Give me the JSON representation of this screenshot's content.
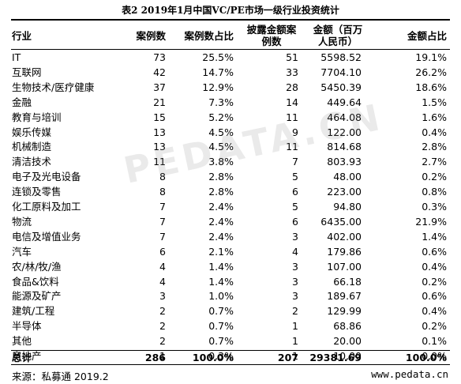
{
  "title": "表2 2019年1月中国VC/PE市场一级行业投资统计",
  "headers": {
    "industry": "行业",
    "cases": "案例数",
    "case_share": "案例数占比",
    "disclosed_line1": "披露金额案",
    "disclosed_line2": "例数",
    "amount_line1": "金额（百万",
    "amount_line2": "人民币）",
    "amount_share": "金额占比"
  },
  "rows": [
    {
      "industry": "IT",
      "cases": "73",
      "case_share": "25.5%",
      "disclosed": "51",
      "amount": "5598.52",
      "amount_share": "19.1%"
    },
    {
      "industry": "互联网",
      "cases": "42",
      "case_share": "14.7%",
      "disclosed": "33",
      "amount": "7704.10",
      "amount_share": "26.2%"
    },
    {
      "industry": "生物技术/医疗健康",
      "cases": "37",
      "case_share": "12.9%",
      "disclosed": "28",
      "amount": "5450.39",
      "amount_share": "18.6%"
    },
    {
      "industry": "金融",
      "cases": "21",
      "case_share": "7.3%",
      "disclosed": "14",
      "amount": "449.64",
      "amount_share": "1.5%"
    },
    {
      "industry": "教育与培训",
      "cases": "15",
      "case_share": "5.2%",
      "disclosed": "11",
      "amount": "464.08",
      "amount_share": "1.6%"
    },
    {
      "industry": "娱乐传媒",
      "cases": "13",
      "case_share": "4.5%",
      "disclosed": "9",
      "amount": "122.00",
      "amount_share": "0.4%"
    },
    {
      "industry": "机械制造",
      "cases": "13",
      "case_share": "4.5%",
      "disclosed": "11",
      "amount": "814.68",
      "amount_share": "2.8%"
    },
    {
      "industry": "清洁技术",
      "cases": "11",
      "case_share": "3.8%",
      "disclosed": "7",
      "amount": "803.93",
      "amount_share": "2.7%"
    },
    {
      "industry": "电子及光电设备",
      "cases": "8",
      "case_share": "2.8%",
      "disclosed": "5",
      "amount": "48.00",
      "amount_share": "0.2%"
    },
    {
      "industry": "连锁及零售",
      "cases": "8",
      "case_share": "2.8%",
      "disclosed": "6",
      "amount": "223.00",
      "amount_share": "0.8%"
    },
    {
      "industry": "化工原料及加工",
      "cases": "7",
      "case_share": "2.4%",
      "disclosed": "5",
      "amount": "94.80",
      "amount_share": "0.3%"
    },
    {
      "industry": "物流",
      "cases": "7",
      "case_share": "2.4%",
      "disclosed": "6",
      "amount": "6435.00",
      "amount_share": "21.9%"
    },
    {
      "industry": "电信及增值业务",
      "cases": "7",
      "case_share": "2.4%",
      "disclosed": "3",
      "amount": "402.00",
      "amount_share": "1.4%"
    },
    {
      "industry": "汽车",
      "cases": "6",
      "case_share": "2.1%",
      "disclosed": "4",
      "amount": "179.86",
      "amount_share": "0.6%"
    },
    {
      "industry": "农/林/牧/渔",
      "cases": "4",
      "case_share": "1.4%",
      "disclosed": "3",
      "amount": "107.00",
      "amount_share": "0.4%"
    },
    {
      "industry": "食品&饮料",
      "cases": "4",
      "case_share": "1.4%",
      "disclosed": "3",
      "amount": "66.18",
      "amount_share": "0.2%"
    },
    {
      "industry": "能源及矿产",
      "cases": "3",
      "case_share": "1.0%",
      "disclosed": "3",
      "amount": "189.67",
      "amount_share": "0.6%"
    },
    {
      "industry": "建筑/工程",
      "cases": "2",
      "case_share": "0.7%",
      "disclosed": "2",
      "amount": "129.99",
      "amount_share": "0.4%"
    },
    {
      "industry": "半导体",
      "cases": "2",
      "case_share": "0.7%",
      "disclosed": "1",
      "amount": "68.86",
      "amount_share": "0.2%"
    },
    {
      "industry": "其他",
      "cases": "2",
      "case_share": "0.7%",
      "disclosed": "1",
      "amount": "20.00",
      "amount_share": "0.1%"
    },
    {
      "industry": "房地产",
      "cases": "1",
      "case_share": "0.3%",
      "disclosed": "1",
      "amount": "10.00",
      "amount_share": "0.0%"
    }
  ],
  "total": {
    "industry": "总计",
    "cases": "286",
    "case_share": "100.0%",
    "disclosed": "207",
    "amount": "29381.69",
    "amount_share": "100.0%"
  },
  "footer": {
    "source": "来源：私募通 2019.2",
    "url": "www.pedata.cn"
  },
  "watermark": "PEDATA.CN"
}
